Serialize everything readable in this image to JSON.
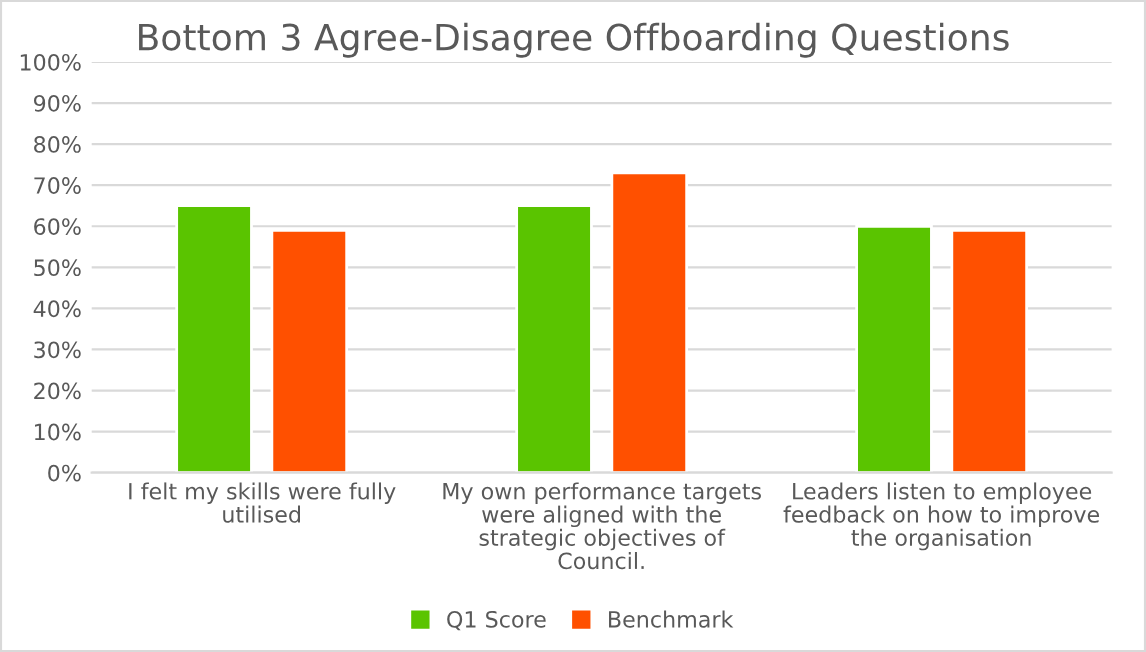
{
  "chart_data": {
    "type": "bar",
    "title": "Bottom 3 Agree-Disagree Offboarding Questions",
    "categories": [
      "I felt my skills were fully utilised",
      "My own performance targets were aligned with the strategic objectives of Council.",
      "Leaders listen to employee feedback on how to improve the organisation"
    ],
    "series": [
      {
        "name": "Q1 Score",
        "color": "#5ac400",
        "values": [
          65,
          65,
          60
        ]
      },
      {
        "name": "Benchmark",
        "color": "#ff5000",
        "values": [
          59,
          73,
          59
        ]
      }
    ],
    "ylim": [
      0,
      100
    ],
    "yticks": [
      {
        "value": 0,
        "label": "0%"
      },
      {
        "value": 10,
        "label": "10%"
      },
      {
        "value": 20,
        "label": "20%"
      },
      {
        "value": 30,
        "label": "30%"
      },
      {
        "value": 40,
        "label": "40%"
      },
      {
        "value": 50,
        "label": "50%"
      },
      {
        "value": 60,
        "label": "60%"
      },
      {
        "value": 70,
        "label": "70%"
      },
      {
        "value": 80,
        "label": "80%"
      },
      {
        "value": 90,
        "label": "90%"
      },
      {
        "value": 100,
        "label": "100%"
      }
    ],
    "grid": "y",
    "legend": "bottom"
  }
}
